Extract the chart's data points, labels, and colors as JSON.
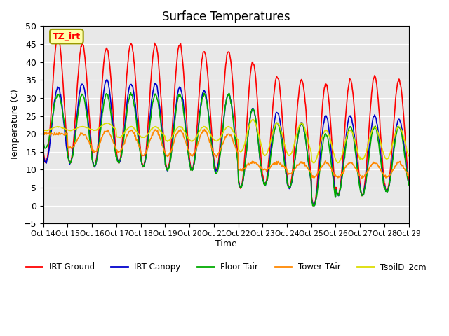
{
  "title": "Surface Temperatures",
  "ylabel": "Temperature (C)",
  "xlabel": "Time",
  "annotation": "TZ_irt",
  "ylim": [
    -5,
    50
  ],
  "plot_bg_color": "#e8e8e8",
  "series": {
    "IRT Ground": {
      "color": "#ff0000",
      "lw": 1.2
    },
    "IRT Canopy": {
      "color": "#0000cc",
      "lw": 1.2
    },
    "Floor Tair": {
      "color": "#00aa00",
      "lw": 1.2
    },
    "Tower TAir": {
      "color": "#ff8800",
      "lw": 1.2
    },
    "TsoilD_2cm": {
      "color": "#dddd00",
      "lw": 1.2
    }
  },
  "xtick_labels": [
    "Oct 14",
    "Oct 15",
    "Oct 16",
    "Oct 17",
    "Oct 18",
    "Oct 19",
    "Oct 20",
    "Oct 21",
    "Oct 22",
    "Oct 23",
    "Oct 24",
    "Oct 25",
    "Oct 26",
    "Oct 27",
    "Oct 28",
    "Oct 29"
  ],
  "yticks": [
    -5,
    0,
    5,
    10,
    15,
    20,
    25,
    30,
    35,
    40,
    45,
    50
  ],
  "n_days": 15,
  "pts_per_day": 48,
  "irt_ground_day": [
    47,
    45,
    44,
    45,
    45,
    45,
    43,
    43,
    40,
    36,
    35,
    34,
    35,
    36,
    35
  ],
  "irt_ground_night": [
    12,
    12,
    11,
    12,
    11,
    10,
    10,
    10,
    5,
    6,
    5,
    0,
    3,
    3,
    4
  ],
  "irt_canopy_day": [
    33,
    34,
    35,
    34,
    34,
    33,
    32,
    31,
    27,
    26,
    23,
    25,
    25,
    25,
    24
  ],
  "irt_canopy_night": [
    12,
    12,
    11,
    12,
    11,
    10,
    10,
    10,
    5,
    6,
    5,
    0,
    3,
    3,
    4
  ],
  "floor_tair_day": [
    31,
    31,
    31,
    31,
    31,
    31,
    31,
    31,
    27,
    23,
    23,
    20,
    22,
    22,
    22
  ],
  "floor_tair_night": [
    16,
    12,
    11,
    12,
    11,
    10,
    10,
    9,
    5,
    6,
    5,
    0,
    3,
    3,
    4
  ],
  "tower_tair_day": [
    20,
    20,
    21,
    21,
    21,
    21,
    21,
    20,
    12,
    12,
    12,
    12,
    12,
    12,
    12
  ],
  "tower_tair_night": [
    20,
    16,
    15,
    15,
    14,
    14,
    14,
    14,
    10,
    10,
    9,
    8,
    8,
    8,
    8
  ],
  "tsoil_day": [
    22,
    22,
    23,
    22,
    22,
    22,
    22,
    22,
    24,
    23,
    23,
    21,
    21,
    22,
    22
  ],
  "tsoil_night": [
    21,
    21,
    21,
    19,
    19,
    18,
    18,
    18,
    15,
    14,
    14,
    12,
    12,
    13,
    13
  ]
}
